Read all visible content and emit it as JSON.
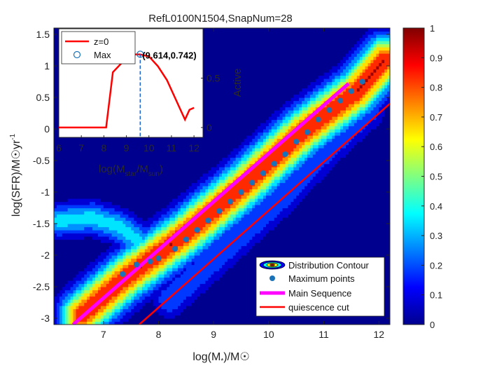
{
  "figure": {
    "title": "RefL0100N1504,SnapNum=28",
    "xlabel": "log(M",
    "xlabel_sub": "*",
    "xlabel_tail": ")/M☉",
    "ylabel": "log(SFR)/M☉yr",
    "ylabel_sup": "-1"
  },
  "chart_data": [
    {
      "type": "contour",
      "title": "RefL0100N1504,SnapNum=28",
      "xlim": [
        6.1,
        12.2
      ],
      "ylim": [
        -3.1,
        1.6
      ],
      "xticks": [
        7,
        8,
        9,
        10,
        11,
        12
      ],
      "yticks": [
        -3,
        -2.5,
        -2,
        -1.5,
        -1,
        -0.5,
        0,
        0.5,
        1,
        1.5
      ],
      "background_color": "#00008f",
      "contour_ridges": [
        {
          "x": [
            6.6,
            7.4,
            8.5,
            9.6,
            10.6,
            11.6,
            12.1
          ],
          "y": [
            -2.95,
            -2.35,
            -1.65,
            -0.85,
            -0.05,
            0.6,
            1.1
          ],
          "sigma_perp": 0.26,
          "peak": 1.0
        },
        {
          "x": [
            6.2,
            6.8,
            7.3,
            7.6
          ],
          "y": [
            -1.45,
            -1.4,
            -1.55,
            -1.75
          ],
          "sigma_perp": 0.18,
          "peak": 0.45
        },
        {
          "x": [
            8.2,
            9.2,
            10.2,
            11.0,
            11.8
          ],
          "y": [
            -2.7,
            -1.9,
            -1.1,
            -0.35,
            0.3
          ],
          "sigma_perp": 0.2,
          "peak": 0.3
        }
      ],
      "colorbar": {
        "min": 0,
        "max": 1,
        "ticks": [
          0,
          0.1,
          0.2,
          0.3,
          0.4,
          0.5,
          0.6,
          0.7,
          0.8,
          0.9,
          1
        ]
      },
      "maximum_points": {
        "x": [
          7.35,
          7.6,
          7.85,
          8.0,
          8.3,
          8.5,
          8.7,
          8.9,
          9.1,
          9.3,
          9.5,
          9.7,
          9.9,
          10.1,
          10.3,
          10.5,
          10.7,
          10.9,
          11.1,
          11.3,
          11.5,
          11.7
        ],
        "y": [
          -2.3,
          -2.15,
          -2.1,
          -2.05,
          -1.9,
          -1.75,
          -1.6,
          -1.45,
          -1.3,
          -1.15,
          -1.0,
          -0.85,
          -0.7,
          -0.55,
          -0.4,
          -0.2,
          -0.05,
          0.15,
          0.3,
          0.45,
          0.6,
          0.75
        ],
        "color": "#1a72b8"
      },
      "main_sequence": {
        "x": [
          6.45,
          11.45
        ],
        "y": [
          -3.1,
          0.72
        ],
        "color": "#ff00ff"
      },
      "quiescence_cut": {
        "x": [
          7.65,
          12.2
        ],
        "y": [
          -3.1,
          0.4
        ],
        "color": "#ff0000"
      },
      "legend": {
        "position": "bottom-right",
        "entries": [
          {
            "label": "Distribution Contour",
            "marker": "contour"
          },
          {
            "label": "Maximum points",
            "marker": "dot",
            "color": "#1a72b8"
          },
          {
            "label": "Main Sequence",
            "marker": "line",
            "color": "#ff00ff"
          },
          {
            "label": "quiescence cut",
            "marker": "line",
            "color": "#ff0000"
          }
        ]
      }
    },
    {
      "type": "line",
      "xlim": [
        6,
        12.4
      ],
      "ylim": [
        -0.1,
        1.0
      ],
      "xticks": [
        6,
        7,
        8,
        9,
        10,
        11,
        12
      ],
      "yticks": [
        0,
        0.5
      ],
      "ylabel": "Active",
      "xlabel": "log(M",
      "xlabel_sub1": "star",
      "xlabel_mid": "/M",
      "xlabel_sub2": "sun",
      "xlabel_tail": ")",
      "series": [
        {
          "name": "z=0",
          "color": "#ff0000",
          "x": [
            6.0,
            8.1,
            8.4,
            8.9,
            9.3,
            9.6,
            10.0,
            10.4,
            10.8,
            11.3,
            11.6,
            11.8,
            12.0
          ],
          "y": [
            0.0,
            0.0,
            0.56,
            0.68,
            0.74,
            0.74,
            0.72,
            0.62,
            0.48,
            0.23,
            0.08,
            0.18,
            0.2
          ]
        }
      ],
      "max_marker": {
        "x": 9.614,
        "y": 0.742,
        "label": "(9.614,0.742)",
        "name": "Max"
      },
      "legend": {
        "position": "top-left",
        "entries": [
          "z=0",
          "Max"
        ]
      }
    }
  ]
}
